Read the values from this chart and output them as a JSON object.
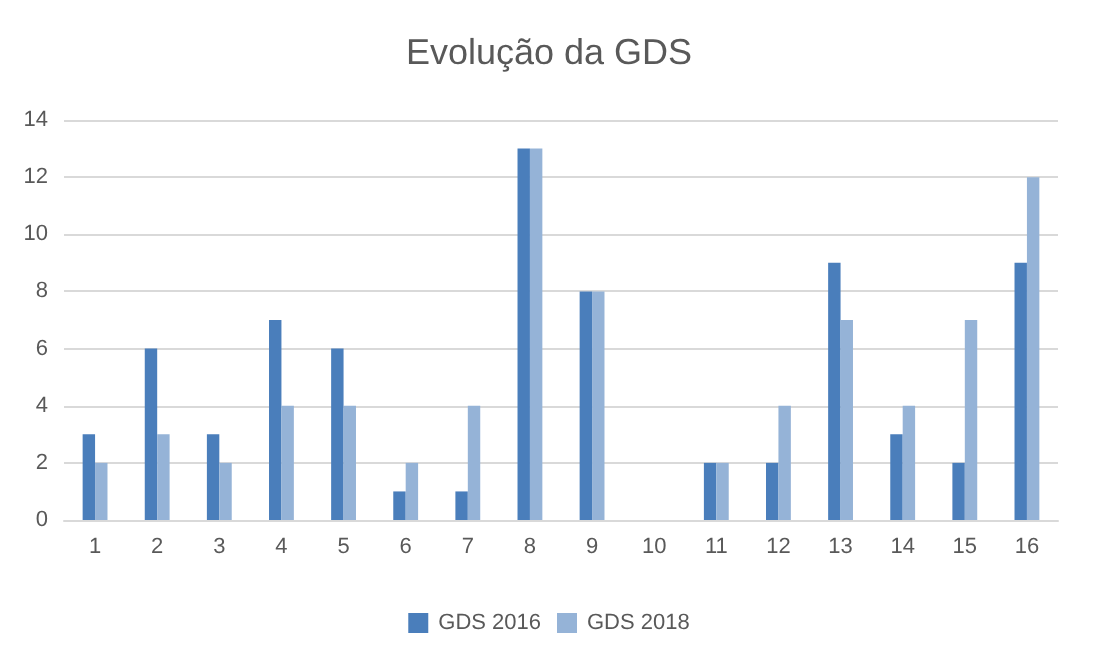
{
  "chart_data": {
    "type": "bar",
    "title": "Evolução da GDS",
    "categories": [
      "1",
      "2",
      "3",
      "4",
      "5",
      "6",
      "7",
      "8",
      "9",
      "10",
      "11",
      "12",
      "13",
      "14",
      "15",
      "16"
    ],
    "series": [
      {
        "name": "GDS 2016",
        "color": "#4a7ebb",
        "values": [
          3,
          6,
          3,
          7,
          6,
          1,
          1,
          13,
          8,
          0,
          2,
          2,
          9,
          3,
          2,
          9
        ]
      },
      {
        "name": "GDS 2018",
        "color": "#95b3d7",
        "values": [
          2,
          3,
          2,
          4,
          4,
          2,
          4,
          13,
          8,
          0,
          2,
          4,
          7,
          4,
          7,
          12
        ]
      }
    ],
    "ylim": [
      0,
      14
    ],
    "yticks": [
      0,
      2,
      4,
      6,
      8,
      10,
      12,
      14
    ],
    "grid": "y",
    "legend": "bottom"
  }
}
